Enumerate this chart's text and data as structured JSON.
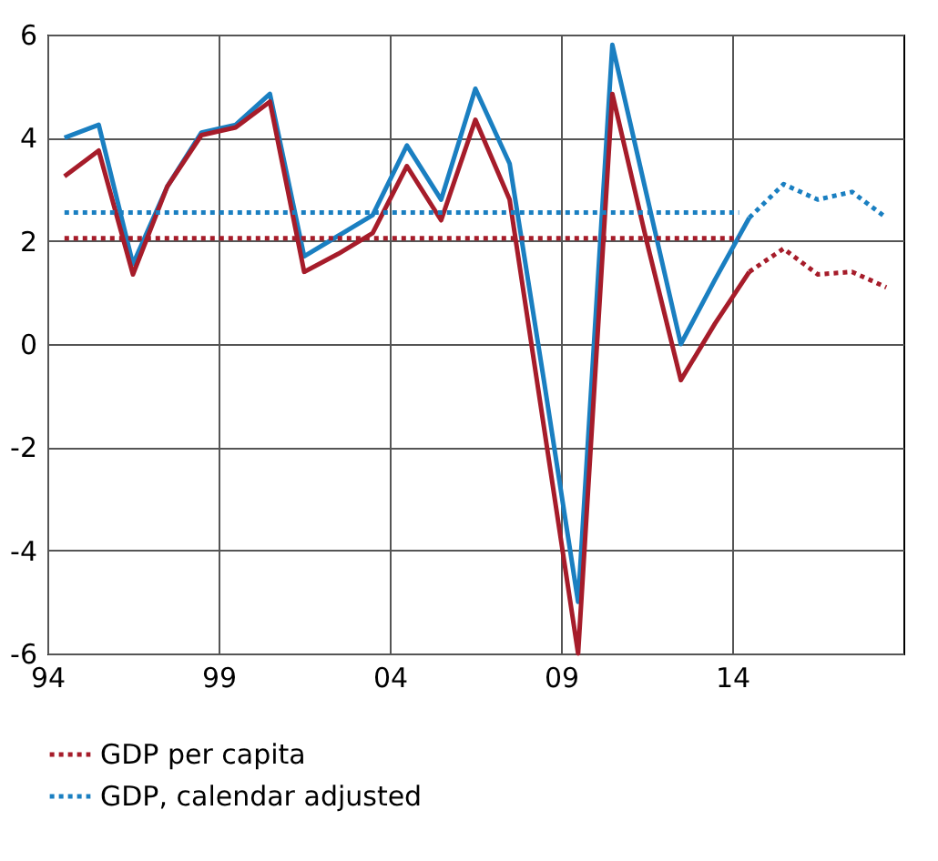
{
  "chart_data": {
    "type": "line",
    "xlim": [
      1994,
      2019
    ],
    "xticks": [
      {
        "value": 1994,
        "label": "94"
      },
      {
        "value": 1999,
        "label": "99"
      },
      {
        "value": 2004,
        "label": "04"
      },
      {
        "value": 2009,
        "label": "09"
      },
      {
        "value": 2014,
        "label": "14"
      }
    ],
    "ylim": [
      -6,
      6
    ],
    "yticks": [
      -6,
      -4,
      -2,
      0,
      2,
      4,
      6
    ],
    "grid": true,
    "legend": "bottom left",
    "marker": "none",
    "series": [
      {
        "color": "#1a7fc1",
        "line_style": "solid",
        "x": [
          1994.5,
          1995.5,
          1996.5,
          1997.5,
          1998.5,
          1999.5,
          2000.5,
          2001.5,
          2002.5,
          2003.5,
          2004.5,
          2005.5,
          2006.5,
          2007.5,
          2008.5,
          2009.5,
          2010.5,
          2011.5,
          2012.5,
          2013.5,
          2014.5
        ],
        "values": [
          4.0,
          4.25,
          1.55,
          3.05,
          4.1,
          4.25,
          4.85,
          1.7,
          2.1,
          2.5,
          3.85,
          2.8,
          4.95,
          3.5,
          -0.7,
          -5.0,
          5.8,
          2.9,
          0.0,
          1.25,
          2.45
        ]
      },
      {
        "color": "#a61c2a",
        "line_style": "solid",
        "x": [
          1994.5,
          1995.5,
          1996.5,
          1997.5,
          1998.5,
          1999.5,
          2000.5,
          2001.5,
          2002.5,
          2003.5,
          2004.5,
          2005.5,
          2006.5,
          2007.5,
          2008.5,
          2009.5,
          2010.5,
          2011.5,
          2012.5,
          2013.5,
          2014.5
        ],
        "values": [
          3.25,
          3.75,
          1.35,
          3.05,
          4.05,
          4.2,
          4.7,
          1.4,
          1.75,
          2.15,
          3.45,
          2.4,
          4.35,
          2.8,
          -1.6,
          -6.0,
          4.85,
          2.0,
          -0.7,
          0.4,
          1.4
        ]
      },
      {
        "color": "#1a7fc1",
        "line_style": "dotted",
        "x": [
          1994.5,
          2014.2
        ],
        "values": [
          2.55,
          2.55
        ]
      },
      {
        "color": "#a61c2a",
        "line_style": "dotted",
        "x": [
          1994.5,
          2014.2
        ],
        "values": [
          2.05,
          2.05
        ]
      },
      {
        "name": "GDP per capita",
        "color": "#a61c2a",
        "line_style": "dotted",
        "x": [
          2014.5,
          2015.5,
          2016.5,
          2017.5,
          2018.5
        ],
        "values": [
          1.4,
          1.85,
          1.35,
          1.4,
          1.1
        ]
      },
      {
        "name": "GDP, calendar adjusted",
        "color": "#1a7fc1",
        "line_style": "dotted",
        "x": [
          2014.5,
          2015.5,
          2016.5,
          2017.5,
          2018.5
        ],
        "values": [
          2.45,
          3.1,
          2.8,
          2.95,
          2.45
        ]
      }
    ]
  }
}
